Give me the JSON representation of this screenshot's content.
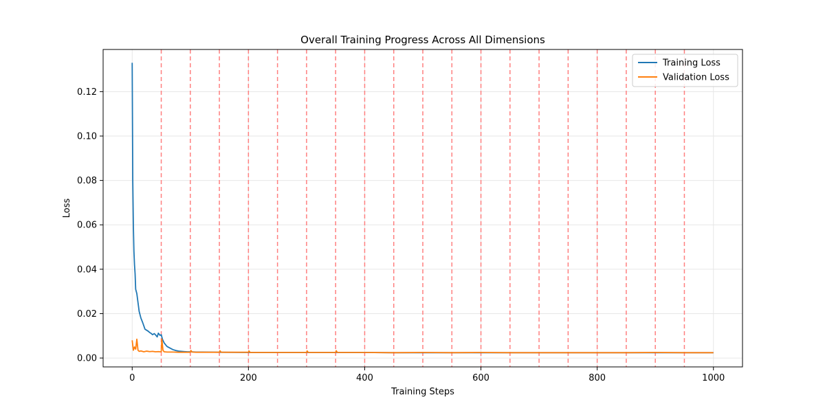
{
  "chart_data": {
    "type": "line",
    "title": "Overall Training Progress Across All Dimensions",
    "xlabel": "Training Steps",
    "ylabel": "Loss",
    "xlim": [
      -50,
      1050
    ],
    "ylim": [
      -0.004,
      0.139
    ],
    "xticks": [
      0,
      200,
      400,
      600,
      800,
      1000
    ],
    "yticks": [
      0.0,
      0.02,
      0.04,
      0.06,
      0.08,
      0.1,
      0.12
    ],
    "xtick_labels": [
      "0",
      "200",
      "400",
      "600",
      "800",
      "1000"
    ],
    "ytick_labels": [
      "0.00",
      "0.02",
      "0.04",
      "0.06",
      "0.08",
      "0.10",
      "0.12"
    ],
    "grid": true,
    "legend_position": "upper-right",
    "vlines": {
      "x": [
        50,
        100,
        150,
        200,
        250,
        300,
        350,
        400,
        450,
        500,
        550,
        600,
        650,
        700,
        750,
        800,
        850,
        900,
        950
      ],
      "color": "#ff7f7f",
      "style": "dashed"
    },
    "series": [
      {
        "name": "Training Loss",
        "color": "#1f77b4",
        "x": [
          0,
          1,
          2,
          3,
          4,
          5,
          6,
          7,
          8,
          10,
          12,
          15,
          18,
          20,
          22,
          25,
          28,
          30,
          33,
          35,
          38,
          40,
          43,
          45,
          48,
          50,
          52,
          55,
          58,
          60,
          65,
          70,
          75,
          80,
          85,
          90,
          95,
          100,
          110,
          120,
          150,
          200,
          250,
          300,
          350,
          400,
          450,
          500,
          550,
          600,
          650,
          700,
          750,
          800,
          850,
          900,
          950,
          1000
        ],
        "y": [
          0.133,
          0.08,
          0.06,
          0.048,
          0.042,
          0.038,
          0.031,
          0.03,
          0.029,
          0.025,
          0.021,
          0.018,
          0.016,
          0.0145,
          0.013,
          0.0125,
          0.012,
          0.0115,
          0.011,
          0.0105,
          0.011,
          0.0105,
          0.0095,
          0.0112,
          0.0102,
          0.0105,
          0.0085,
          0.0068,
          0.0058,
          0.0052,
          0.0045,
          0.0038,
          0.0034,
          0.0031,
          0.003,
          0.0029,
          0.0028,
          0.0028,
          0.0027,
          0.0027,
          0.0026,
          0.0025,
          0.0025,
          0.0025,
          0.0025,
          0.0025,
          0.0024,
          0.0024,
          0.0024,
          0.0024,
          0.0024,
          0.0024,
          0.0024,
          0.0024,
          0.0024,
          0.0024,
          0.0024,
          0.0024
        ]
      },
      {
        "name": "Validation Loss",
        "color": "#ff7f0e",
        "x": [
          0,
          2,
          4,
          6,
          8,
          10,
          12,
          15,
          20,
          25,
          30,
          35,
          40,
          45,
          48,
          50,
          51,
          53,
          55,
          60,
          70,
          80,
          90,
          100,
          101,
          103,
          110,
          150,
          151,
          153,
          200,
          201,
          203,
          250,
          300,
          301,
          303,
          350,
          351,
          353,
          400,
          450,
          500,
          550,
          600,
          650,
          700,
          750,
          800,
          850,
          900,
          950,
          1000
        ],
        "y": [
          0.008,
          0.0035,
          0.005,
          0.004,
          0.0085,
          0.0035,
          0.003,
          0.0032,
          0.0028,
          0.0031,
          0.0029,
          0.003,
          0.0028,
          0.0029,
          0.0028,
          0.0028,
          0.0085,
          0.0035,
          0.0028,
          0.0027,
          0.0027,
          0.0026,
          0.0026,
          0.0026,
          0.0034,
          0.0027,
          0.0026,
          0.0026,
          0.0033,
          0.0026,
          0.0026,
          0.0032,
          0.0025,
          0.0025,
          0.0025,
          0.0032,
          0.0025,
          0.0025,
          0.0033,
          0.0025,
          0.0025,
          0.0024,
          0.0025,
          0.0024,
          0.0025,
          0.0024,
          0.0024,
          0.0024,
          0.0024,
          0.0024,
          0.0025,
          0.0024,
          0.0024
        ]
      }
    ]
  }
}
